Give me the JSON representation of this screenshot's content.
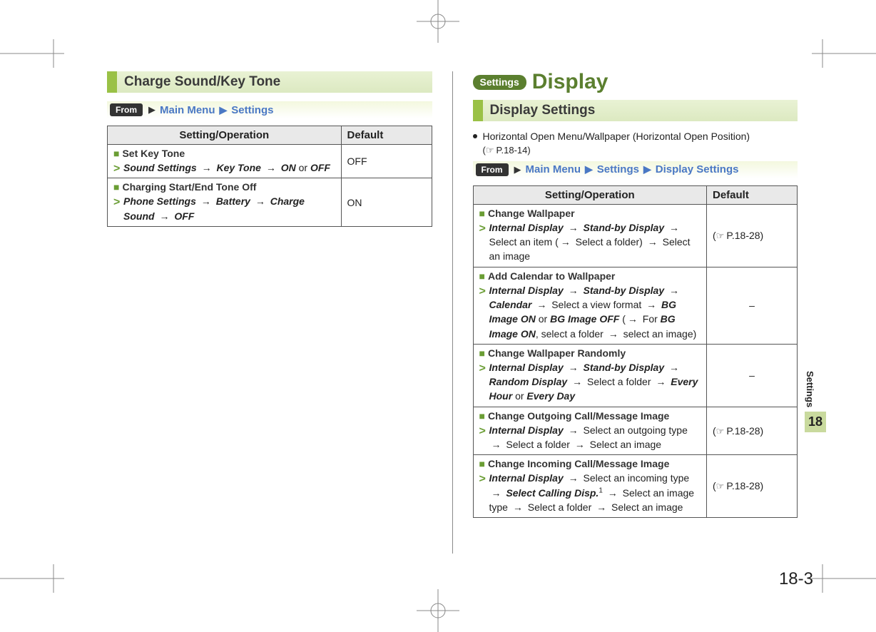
{
  "page_number": "18-3",
  "side_tab": {
    "label": "Settings",
    "number": "18"
  },
  "colors": {
    "accent_green": "#6a9d34",
    "heading_green": "#5b7f2f",
    "gradient_green_light": "#e9f2d4",
    "gradient_green_dark": "#dce9c1",
    "link_blue": "#4a78c4",
    "header_grey": "#e9e9e9",
    "border_grey": "#555555"
  },
  "left": {
    "section_heading": "Charge Sound/Key Tone",
    "from": {
      "tag": "From",
      "crumbs": [
        "Main Menu",
        "Settings"
      ]
    },
    "table": {
      "head": {
        "op": "Setting/Operation",
        "def": "Default"
      },
      "rows": [
        {
          "title": "Set Key Tone",
          "default": "OFF",
          "path_html": "<span class='step'>Sound Settings</span> <span class='arrow'>→</span> <span class='step'>Key Tone</span> <span class='arrow'>→</span> <span class='step'>ON</span> <span class='plain'>or</span> <span class='step'>OFF</span>"
        },
        {
          "title": "Charging Start/End Tone Off",
          "default": "ON",
          "path_html": "<span class='step'>Phone Settings</span> <span class='arrow'>→</span> <span class='step'>Battery</span> <span class='arrow'>→</span> <span class='step'>Charge Sound</span> <span class='arrow'>→</span> <span class='step'>OFF</span>"
        }
      ]
    }
  },
  "right": {
    "chapter_badge": "Settings",
    "chapter_title": "Display",
    "section_heading": "Display Settings",
    "note": "Horizontal Open Menu/Wallpaper (Horizontal Open Position)",
    "note_ref": "P.18-14",
    "from": {
      "tag": "From",
      "crumbs": [
        "Main Menu",
        "Settings",
        "Display Settings"
      ]
    },
    "table": {
      "head": {
        "op": "Setting/Operation",
        "def": "Default"
      },
      "rows": [
        {
          "title": "Change Wallpaper",
          "default_ref": "P.18-28",
          "path_html": "<span class='step'>Internal Display</span> <span class='arrow'>→</span> <span class='step'>Stand-by Display</span> <span class='arrow'>→</span> <span class='plain'>Select an item (</span><span class='arrow'>→</span> <span class='plain'>Select a folder)</span> <span class='arrow'>→</span> <span class='plain'>Select an image</span>"
        },
        {
          "title": "Add Calendar to Wallpaper",
          "default": "–",
          "default_center": true,
          "path_html": "<span class='step'>Internal Display</span> <span class='arrow'>→</span> <span class='step'>Stand-by Display</span> <span class='arrow'>→</span> <span class='step'>Calendar</span> <span class='arrow'>→</span> <span class='plain'>Select a view format</span> <span class='arrow'>→</span> <span class='step'>BG Image ON</span> <span class='plain'>or</span> <span class='step'>BG Image OFF</span> <span class='plain'>(</span><span class='arrow'>→</span> <span class='plain'>For</span> <span class='step'>BG Image ON</span><span class='plain'>, select a folder</span> <span class='arrow'>→</span> <span class='plain'>select an image)</span>"
        },
        {
          "title": "Change Wallpaper Randomly",
          "default": "–",
          "default_center": true,
          "path_html": "<span class='step'>Internal Display</span> <span class='arrow'>→</span> <span class='step'>Stand-by Display</span> <span class='arrow'>→</span> <span class='step'>Random Display</span> <span class='arrow'>→</span> <span class='plain'>Select a folder</span> <span class='arrow'>→</span> <span class='step'>Every Hour</span> <span class='plain'>or</span> <span class='step'>Every Day</span>"
        },
        {
          "title": "Change Outgoing Call/Message Image",
          "default_ref": "P.18-28",
          "path_html": "<span class='step'>Internal Display</span> <span class='arrow'>→</span> <span class='plain'>Select an outgoing type</span> <span class='arrow'>→</span> <span class='plain'>Select a folder</span> <span class='arrow'>→</span> <span class='plain'>Select an image</span>"
        },
        {
          "title": "Change Incoming Call/Message Image",
          "default_ref": "P.18-28",
          "path_html": "<span class='step'>Internal Display</span> <span class='arrow'>→</span> <span class='plain'>Select an incoming type</span> <span class='arrow'>→</span> <span class='step'>Select Calling Disp.</span><span class='sup'>1</span> <span class='arrow'>→</span> <span class='plain'>Select an image type</span> <span class='arrow'>→</span> <span class='plain'>Select a folder</span> <span class='arrow'>→</span> <span class='plain'>Select an image</span>"
        }
      ]
    }
  }
}
